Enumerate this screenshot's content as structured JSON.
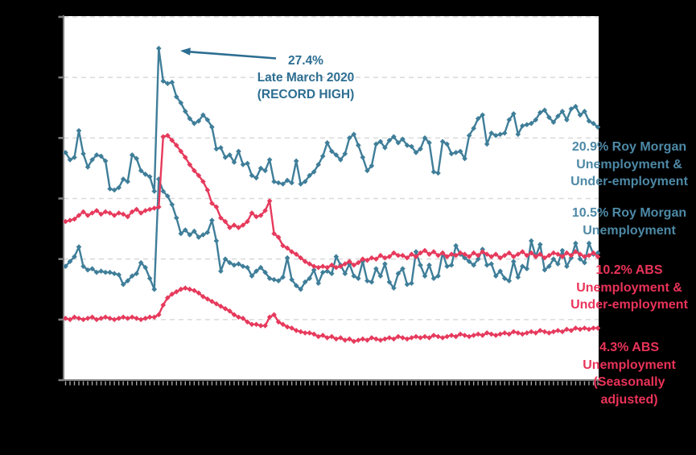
{
  "colors": {
    "background": "#000000",
    "plot_background": "#ffffff",
    "gridline": "#d9d9d9",
    "axis": "#7f7f7f",
    "bottom_tick": "#a6a6a6",
    "teal_line": "#3f7e99",
    "red_line": "#e63a5c",
    "teal_label": "#4d89a6",
    "red_label": "#ea3358",
    "annotation_teal": "#2d6e92"
  },
  "chart_data": {
    "type": "line",
    "title": "",
    "x_axis": {
      "labels_visible": false,
      "tick_count": 121
    },
    "y_axis": {
      "labels_visible": false,
      "min": 0,
      "max": 30,
      "gridline_step": 5,
      "grid": "dashed"
    },
    "legend_position": "right-inline-labels",
    "annotation": {
      "line1": "27.4%",
      "line2": "Late March 2020",
      "line3": "(RECORD HIGH)",
      "points_to": "peak of Roy Morgan Unemployment & Under-employment series"
    },
    "series": [
      {
        "name": "Roy Morgan Unemployment & Under-employment",
        "color": "#3f7e99",
        "final_value": 20.9,
        "peak_value": 27.4,
        "values": [
          18.8,
          18.2,
          18.4,
          20.6,
          18.7,
          17.6,
          18.2,
          18.6,
          18.5,
          18.1,
          15.8,
          15.7,
          15.9,
          16.6,
          16.4,
          18.6,
          18.3,
          17.3,
          17.0,
          16.8,
          15.6,
          27.4,
          24.7,
          24.5,
          24.6,
          23.4,
          22.9,
          22.2,
          21.6,
          21.2,
          21.4,
          21.9,
          21.5,
          20.9,
          19.1,
          19.2,
          18.4,
          18.6,
          18.0,
          18.9,
          17.8,
          17.9,
          16.9,
          16.7,
          17.5,
          17.3,
          18.2,
          16.4,
          16.3,
          16.2,
          16.5,
          16.3,
          18.1,
          16.2,
          16.4,
          16.9,
          17.2,
          17.8,
          18.5,
          19.6,
          18.9,
          18.6,
          18.2,
          18.7,
          20.0,
          20.3,
          19.4,
          18.4,
          17.3,
          17.7,
          19.5,
          19.7,
          19.2,
          19.8,
          20.1,
          19.6,
          19.9,
          19.4,
          19.3,
          18.8,
          19.1,
          20.0,
          19.6,
          17.2,
          17.1,
          19.7,
          19.5,
          18.7,
          18.8,
          18.9,
          18.3,
          20.2,
          20.8,
          21.6,
          21.9,
          19.5,
          20.4,
          20.2,
          20.3,
          20.4,
          21.5,
          22.0,
          20.3,
          21.0,
          21.1,
          21.2,
          21.5,
          22.1,
          22.3,
          21.7,
          21.3,
          21.8,
          22.2,
          21.5,
          22.4,
          22.6,
          21.9,
          22.2,
          21.4,
          21.2,
          20.9
        ]
      },
      {
        "name": "Roy Morgan Unemployment",
        "color": "#3f7e99",
        "final_value": 10.5,
        "values": [
          9.4,
          9.8,
          10.2,
          11.0,
          9.4,
          9.1,
          9.2,
          8.9,
          9.0,
          8.9,
          8.9,
          8.8,
          8.7,
          7.9,
          8.2,
          8.6,
          8.8,
          9.7,
          9.3,
          8.4,
          7.5,
          16.6,
          15.6,
          15.2,
          14.5,
          13.4,
          12.1,
          12.4,
          12.0,
          12.3,
          11.8,
          12.0,
          12.2,
          13.2,
          11.5,
          9.0,
          10.0,
          9.7,
          9.5,
          9.6,
          9.4,
          9.3,
          8.6,
          9.0,
          9.3,
          8.9,
          8.4,
          8.3,
          8.2,
          8.5,
          10.1,
          8.3,
          7.8,
          7.5,
          8.1,
          8.4,
          9.1,
          8.0,
          8.9,
          9.0,
          8.8,
          10.2,
          9.5,
          8.8,
          9.6,
          8.6,
          8.4,
          9.8,
          8.2,
          8.1,
          9.2,
          8.6,
          9.6,
          8.1,
          7.6,
          8.8,
          9.2,
          7.9,
          8.0,
          10.6,
          9.5,
          8.6,
          9.5,
          8.4,
          8.6,
          10.5,
          9.4,
          9.5,
          11.1,
          10.4,
          10.1,
          9.8,
          9.5,
          10.0,
          10.8,
          9.5,
          9.6,
          8.6,
          9.0,
          8.4,
          8.2,
          9.8,
          8.5,
          9.4,
          9.2,
          11.5,
          10.2,
          11.2,
          9.1,
          9.4,
          10.0,
          9.6,
          10.7,
          9.4,
          10.1,
          11.3,
          10.0,
          9.7,
          11.3,
          10.4,
          10.5
        ]
      },
      {
        "name": "ABS Unemployment & Under-employment",
        "color": "#e63a5c",
        "final_value": 10.2,
        "values": [
          13.1,
          13.2,
          13.3,
          13.6,
          13.9,
          13.6,
          13.8,
          14.0,
          13.7,
          13.9,
          13.8,
          13.6,
          13.8,
          13.7,
          13.5,
          13.9,
          14.1,
          13.8,
          14.0,
          14.1,
          14.2,
          14.3,
          20.1,
          20.2,
          19.8,
          19.4,
          18.9,
          18.4,
          17.8,
          17.3,
          16.9,
          16.4,
          15.7,
          14.6,
          14.3,
          13.4,
          13.1,
          12.6,
          12.8,
          12.6,
          12.8,
          13.1,
          13.8,
          13.5,
          13.6,
          14.0,
          14.8,
          12.1,
          11.8,
          11.1,
          10.9,
          10.6,
          10.4,
          10.1,
          9.8,
          9.6,
          9.4,
          9.3,
          9.4,
          9.3,
          9.5,
          9.3,
          9.4,
          9.6,
          9.8,
          9.5,
          9.7,
          10.0,
          9.9,
          10.1,
          10.0,
          10.3,
          10.1,
          10.2,
          10.5,
          10.3,
          10.3,
          10.1,
          10.4,
          10.2,
          10.5,
          10.7,
          10.4,
          10.6,
          10.3,
          10.5,
          10.2,
          10.4,
          10.3,
          10.5,
          10.4,
          10.2,
          10.5,
          10.3,
          10.6,
          10.4,
          10.2,
          10.4,
          10.1,
          10.3,
          10.5,
          10.2,
          10.4,
          10.6,
          10.3,
          10.5,
          10.2,
          10.4,
          10.1,
          10.3,
          10.5,
          10.4,
          10.2,
          10.5,
          10.3,
          10.6,
          10.4,
          10.2,
          10.3,
          10.5,
          10.2
        ]
      },
      {
        "name": "ABS Unemployment (Seasonally adjusted)",
        "color": "#e63a5c",
        "final_value": 4.3,
        "values": [
          5.1,
          5.0,
          5.2,
          5.1,
          5.0,
          5.1,
          5.2,
          5.0,
          5.1,
          5.2,
          5.1,
          5.0,
          5.1,
          5.2,
          5.1,
          5.2,
          5.1,
          5.0,
          5.1,
          5.2,
          5.2,
          5.4,
          6.2,
          6.8,
          7.1,
          7.3,
          7.5,
          7.6,
          7.5,
          7.4,
          7.2,
          6.9,
          6.7,
          6.5,
          6.3,
          6.1,
          5.9,
          5.7,
          5.4,
          5.2,
          5.1,
          4.8,
          4.6,
          4.6,
          4.5,
          4.5,
          5.2,
          5.4,
          4.8,
          4.6,
          4.4,
          4.3,
          4.1,
          4.0,
          3.9,
          3.9,
          3.8,
          3.6,
          3.7,
          3.5,
          3.6,
          3.4,
          3.5,
          3.3,
          3.4,
          3.2,
          3.3,
          3.4,
          3.3,
          3.5,
          3.4,
          3.3,
          3.4,
          3.5,
          3.4,
          3.6,
          3.5,
          3.4,
          3.5,
          3.6,
          3.5,
          3.6,
          3.5,
          3.7,
          3.6,
          3.5,
          3.6,
          3.7,
          3.6,
          3.8,
          3.7,
          3.6,
          3.7,
          3.8,
          3.7,
          3.9,
          3.8,
          3.7,
          3.8,
          3.9,
          3.8,
          4.0,
          3.9,
          3.8,
          3.9,
          4.0,
          3.9,
          4.1,
          4.0,
          3.9,
          4.0,
          4.1,
          4.0,
          4.2,
          4.1,
          4.3,
          4.2,
          4.3,
          4.2,
          4.3,
          4.3
        ]
      }
    ],
    "series_labels": [
      {
        "series": "Roy Morgan Unemployment & Under-employment",
        "color": "#4d89a6",
        "lines": [
          "20.9% Roy Morgan",
          "Unemployment &",
          "Under-employment"
        ]
      },
      {
        "series": "Roy Morgan Unemployment",
        "color": "#4d89a6",
        "lines": [
          "10.5% Roy Morgan",
          "Unemployment"
        ]
      },
      {
        "series": "ABS Unemployment & Under-employment",
        "color": "#ea3358",
        "lines": [
          "10.2% ABS",
          "Unemployment &",
          "Under-employment"
        ]
      },
      {
        "series": "ABS Unemployment (Seasonally adjusted)",
        "color": "#ea3358",
        "lines": [
          "4.3% ABS",
          "Unemployment",
          "(Seasonally",
          "adjusted)"
        ]
      }
    ]
  }
}
